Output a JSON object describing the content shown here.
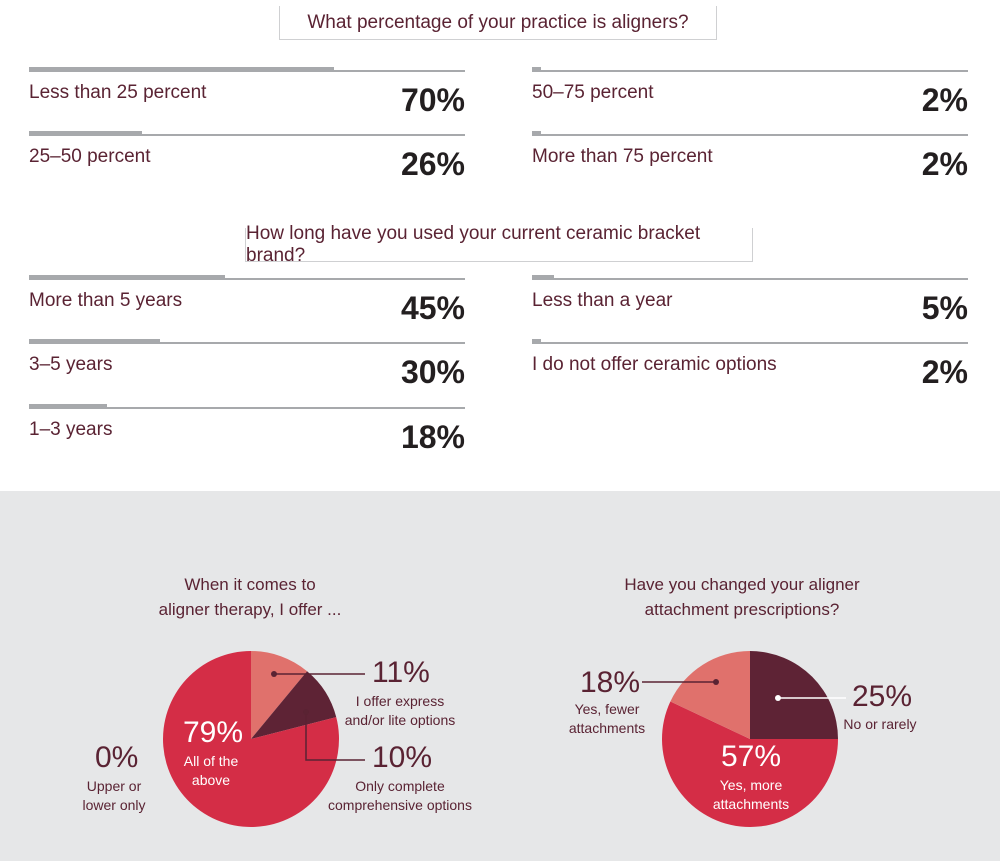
{
  "colors": {
    "crimson": "#d42d46",
    "salmon": "#e0716c",
    "maroon": "#5e2335",
    "bar": "#a7a9ac",
    "panel": "#e6e7e8"
  },
  "chart_data": [
    {
      "type": "bar",
      "title": "What percentage of your practice is aligners?",
      "categories": [
        "Less than 25 percent",
        "25–50 percent",
        "50–75 percent",
        "More than 75 percent"
      ],
      "values": [
        70,
        26,
        2,
        2
      ],
      "labels": [
        "70%",
        "26%",
        "2%",
        "2%"
      ]
    },
    {
      "type": "bar",
      "title": "How long have you used your current ceramic bracket brand?",
      "categories": [
        "More than 5 years",
        "3–5 years",
        "1–3 years",
        "Less than a year",
        "I do not offer ceramic options"
      ],
      "values": [
        45,
        30,
        18,
        5,
        2
      ],
      "labels": [
        "45%",
        "30%",
        "18%",
        "5%",
        "2%"
      ]
    },
    {
      "type": "pie",
      "title_lines": [
        "When it comes to",
        "aligner therapy, I offer ..."
      ],
      "categories": [
        "All of the above",
        "I offer express and/or lite options",
        "Only complete comprehensive options",
        "Upper or lower only"
      ],
      "values": [
        79,
        11,
        10,
        0
      ],
      "labels": [
        "79%",
        "11%",
        "10%",
        "0%"
      ],
      "label_lines": [
        [
          "All of the",
          "above"
        ],
        [
          "I offer express",
          "and/or lite options"
        ],
        [
          "Only complete",
          "comprehensive options"
        ],
        [
          "Upper or",
          "lower only"
        ]
      ]
    },
    {
      "type": "pie",
      "title_lines": [
        "Have you changed your aligner",
        "attachment prescriptions?"
      ],
      "categories": [
        "No or rarely",
        "Yes, more attachments",
        "Yes, fewer attachments"
      ],
      "values": [
        25,
        57,
        18
      ],
      "labels": [
        "25%",
        "57%",
        "18%"
      ],
      "label_lines": [
        [
          "No or rarely"
        ],
        [
          "Yes, more",
          "attachments"
        ],
        [
          "Yes, fewer",
          "attachments"
        ]
      ]
    }
  ]
}
